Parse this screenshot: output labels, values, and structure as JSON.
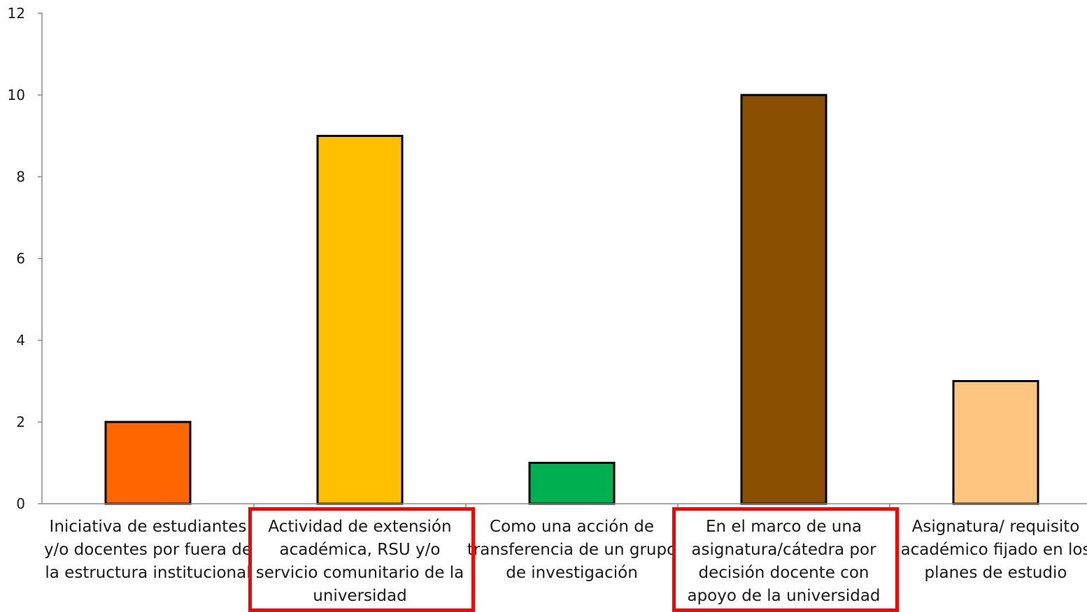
{
  "chart_data": {
    "type": "bar",
    "title": "",
    "xlabel": "",
    "ylabel": "",
    "ylim": [
      0,
      12
    ],
    "yticks": [
      0,
      2,
      4,
      6,
      8,
      10,
      12
    ],
    "grid": false,
    "legend": "none",
    "categories": [
      "Iniciativa de estudiantes y/o docentes por fuera de la estructura institucional",
      "Actividad de extensión académica, RSU y/o servicio comunitario de la universidad",
      "Como una acción de transferencia de un grupo de investigación",
      "En el marco de una asignatura/cátedra por decisión docente con apoyo de la universidad",
      "Asignatura/ requisito académico  fijado en  los planes de estudio"
    ],
    "category_lines": [
      [
        "Iniciativa de estudiantes",
        "y/o docentes por fuera de",
        "la estructura institucional"
      ],
      [
        "Actividad de extensión",
        "académica, RSU y/o",
        "servicio comunitario de la",
        "universidad"
      ],
      [
        "Como una acción de",
        "transferencia de un grupo",
        "de investigación"
      ],
      [
        "En el marco de una",
        "asignatura/cátedra por",
        "decisión docente con",
        "apoyo de la universidad"
      ],
      [
        "Asignatura/ requisito",
        "académico  fijado en  los",
        "planes de estudio"
      ]
    ],
    "values": [
      2,
      9,
      1,
      10,
      3
    ],
    "colors": [
      "#ff6600",
      "#ffc000",
      "#00b050",
      "#8b4f00",
      "#fdc57f"
    ],
    "highlighted": [
      false,
      true,
      false,
      true,
      false
    ]
  }
}
